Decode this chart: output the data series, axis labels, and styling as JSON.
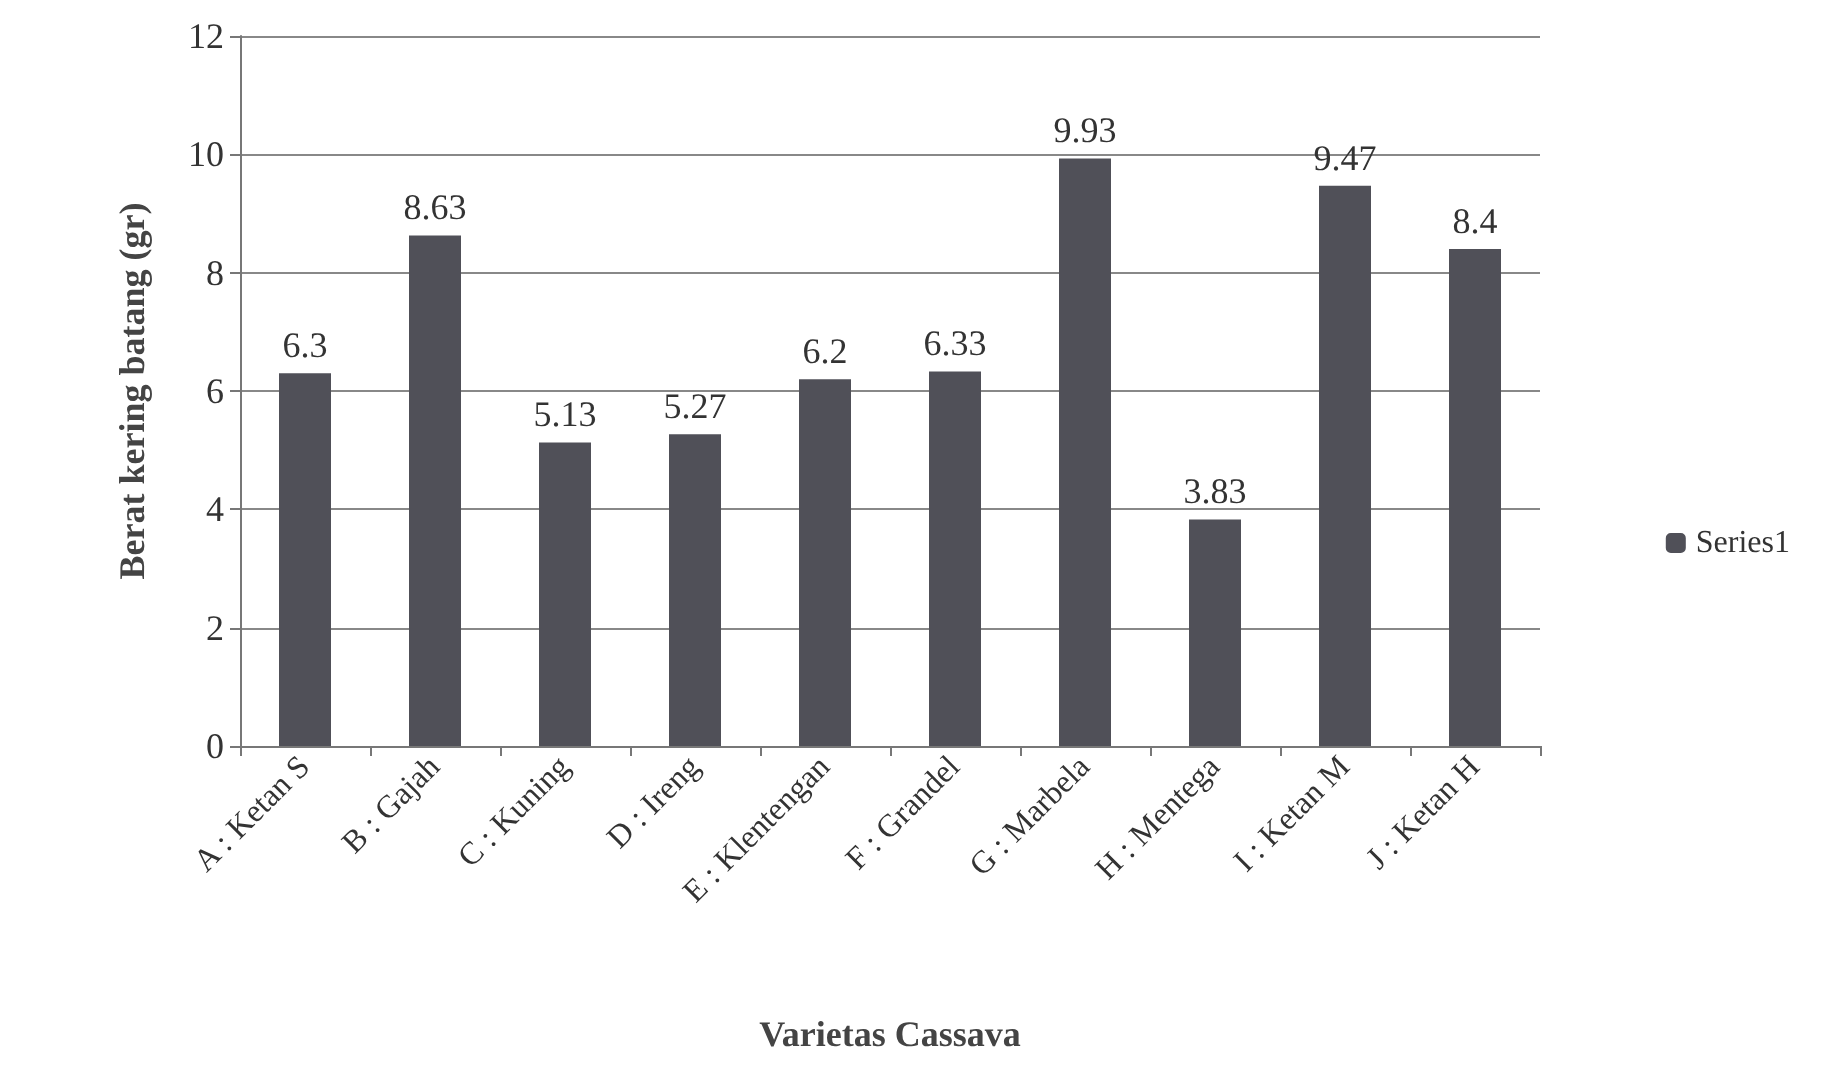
{
  "chart_data": {
    "type": "bar",
    "xlabel": "Varietas Cassava",
    "ylabel": "Berat kering batang (gr)",
    "categories": [
      "A : Ketan S",
      "B : Gajah",
      "C : Kuning",
      "D : Ireng",
      "E : Klentengan",
      "F : Grandel",
      "G : Marbela",
      "H : Mentega",
      "I : Ketan M",
      "J : Ketan H"
    ],
    "series": [
      {
        "name": "Series1",
        "color": "#505058",
        "values": [
          6.3,
          8.63,
          5.13,
          5.27,
          6.2,
          6.33,
          9.93,
          3.83,
          9.47,
          8.4
        ]
      }
    ],
    "ylim": [
      0,
      12
    ],
    "yticks": [
      0,
      2,
      4,
      6,
      8,
      10,
      12
    ],
    "grid": "y",
    "legend": "right",
    "data_labels": true
  }
}
